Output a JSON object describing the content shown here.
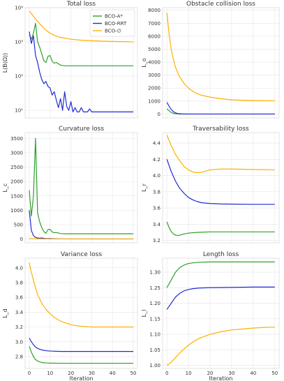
{
  "chart_data": [
    {
      "type": "line",
      "title": "Total loss",
      "xlabel": "",
      "ylabel": "L(B(Ω))",
      "yscale": "log",
      "ylim": [
        6,
        10000
      ],
      "xlim": [
        -2,
        52
      ],
      "yticks": [
        10,
        100,
        1000,
        10000
      ],
      "ytick_labels": [
        "10¹",
        "10²",
        "10³",
        "10⁴"
      ],
      "xticks": [
        0,
        10,
        20,
        30,
        40,
        50
      ],
      "xtick_labels": [],
      "grid": true,
      "legend": {
        "placement": "top-right",
        "entries": [
          "BCO-A*",
          "BCO-RRT",
          "BCO-∅"
        ]
      },
      "series": [
        {
          "name": "BCO-A*",
          "color": "#2ca02c",
          "x": [
            0,
            1,
            2,
            3,
            4,
            5,
            6,
            7,
            8,
            9,
            10,
            11,
            12,
            13,
            14,
            15,
            16,
            17,
            18,
            20,
            25,
            30,
            40,
            50
          ],
          "y": [
            1600,
            1200,
            1800,
            3500,
            1000,
            700,
            450,
            280,
            250,
            380,
            400,
            270,
            240,
            250,
            230,
            210,
            205,
            200,
            200,
            200,
            200,
            200,
            200,
            200
          ]
        },
        {
          "name": "BCO-RRT",
          "color": "#1f2bd4",
          "x": [
            0,
            1,
            2,
            3,
            4,
            5,
            6,
            7,
            8,
            9,
            10,
            11,
            12,
            13,
            14,
            15,
            16,
            17,
            18,
            19,
            20,
            21,
            22,
            23,
            24,
            25,
            26,
            27,
            28,
            29,
            30,
            33,
            35,
            40,
            45,
            50
          ],
          "y": [
            2000,
            900,
            1500,
            400,
            250,
            130,
            80,
            60,
            70,
            50,
            45,
            28,
            35,
            20,
            12,
            22,
            10,
            35,
            13,
            10,
            18,
            9,
            12,
            9,
            9,
            12,
            9,
            9,
            9,
            11,
            9,
            9,
            9,
            9,
            9,
            9
          ]
        },
        {
          "name": "BCO-∅",
          "color": "#ffb000",
          "x": [
            0,
            2,
            4,
            6,
            8,
            10,
            12,
            15,
            20,
            25,
            30,
            35,
            40,
            45,
            50
          ],
          "y": [
            8000,
            5600,
            4000,
            2900,
            2200,
            1800,
            1550,
            1350,
            1200,
            1120,
            1080,
            1050,
            1030,
            1020,
            1000
          ]
        }
      ]
    },
    {
      "type": "line",
      "title": "Obstacle collision loss",
      "xlabel": "",
      "ylabel": "L_o",
      "yscale": "linear",
      "ylim": [
        -300,
        8200
      ],
      "xlim": [
        -2,
        52
      ],
      "yticks": [
        0,
        1000,
        2000,
        3000,
        4000,
        5000,
        6000,
        7000,
        8000
      ],
      "ytick_labels": [
        "0",
        "1000",
        "2000",
        "3000",
        "4000",
        "5000",
        "6000",
        "7000",
        "8000"
      ],
      "xticks": [
        0,
        10,
        20,
        30,
        40,
        50
      ],
      "xtick_labels": [],
      "grid": true,
      "series": [
        {
          "name": "BCO-A*",
          "color": "#2ca02c",
          "x": [
            0,
            1,
            2,
            3,
            4,
            6,
            10,
            20,
            50
          ],
          "y": [
            400,
            250,
            120,
            50,
            20,
            0,
            0,
            0,
            0
          ]
        },
        {
          "name": "BCO-RRT",
          "color": "#1f2bd4",
          "x": [
            0,
            1,
            2,
            3,
            4,
            5,
            7,
            10,
            20,
            50
          ],
          "y": [
            900,
            600,
            350,
            180,
            90,
            40,
            10,
            0,
            0,
            0
          ]
        },
        {
          "name": "BCO-∅",
          "color": "#ffb000",
          "x": [
            0,
            1,
            2,
            3,
            4,
            5,
            6,
            8,
            10,
            12,
            15,
            20,
            25,
            30,
            35,
            40,
            45,
            50
          ],
          "y": [
            7800,
            6200,
            5000,
            4200,
            3600,
            3200,
            2850,
            2350,
            2000,
            1750,
            1500,
            1300,
            1180,
            1100,
            1060,
            1040,
            1030,
            1020
          ]
        }
      ]
    },
    {
      "type": "line",
      "title": "Curvature loss",
      "xlabel": "",
      "ylabel": "L_c",
      "yscale": "linear",
      "ylim": [
        -130,
        3700
      ],
      "xlim": [
        -2,
        52
      ],
      "yticks": [
        0,
        500,
        1000,
        1500,
        2000,
        2500,
        3000,
        3500
      ],
      "ytick_labels": [
        "0",
        "500",
        "1000",
        "1500",
        "2000",
        "2500",
        "3000",
        "3500"
      ],
      "xticks": [
        0,
        10,
        20,
        30,
        40,
        50
      ],
      "xtick_labels": [],
      "grid": true,
      "series": [
        {
          "name": "BCO-A*",
          "color": "#2ca02c",
          "x": [
            0,
            1,
            2,
            3,
            4,
            5,
            6,
            7,
            8,
            9,
            10,
            11,
            12,
            13,
            14,
            15,
            17,
            20,
            30,
            50
          ],
          "y": [
            1700,
            800,
            1500,
            3500,
            900,
            600,
            400,
            260,
            200,
            330,
            340,
            250,
            220,
            230,
            210,
            190,
            185,
            185,
            185,
            185
          ]
        },
        {
          "name": "BCO-RRT",
          "color": "#1f2bd4",
          "x": [
            0,
            1,
            2,
            3,
            4,
            5,
            6,
            7,
            8,
            10,
            12,
            15,
            20,
            30,
            50
          ],
          "y": [
            1000,
            300,
            120,
            60,
            40,
            30,
            40,
            25,
            20,
            15,
            10,
            5,
            5,
            5,
            5
          ]
        },
        {
          "name": "BCO-∅",
          "color": "#ffb000",
          "x": [
            0,
            2,
            4,
            6,
            10,
            50
          ],
          "y": [
            20,
            15,
            10,
            8,
            5,
            3
          ]
        }
      ]
    },
    {
      "type": "line",
      "title": "Traversability loss",
      "xlabel": "",
      "ylabel": "L_r",
      "yscale": "linear",
      "ylim": [
        3.17,
        4.53
      ],
      "xlim": [
        -2,
        52
      ],
      "yticks": [
        3.2,
        3.4,
        3.6,
        3.8,
        4.0,
        4.2,
        4.4
      ],
      "ytick_labels": [
        "3.2",
        "3.4",
        "3.6",
        "3.8",
        "4.0",
        "4.2",
        "4.4"
      ],
      "xticks": [
        0,
        10,
        20,
        30,
        40,
        50
      ],
      "xtick_labels": [],
      "grid": true,
      "series": [
        {
          "name": "BCO-A*",
          "color": "#2ca02c",
          "x": [
            0,
            1,
            2,
            3,
            4,
            5,
            6,
            8,
            10,
            12,
            15,
            20,
            30,
            40,
            50
          ],
          "y": [
            3.43,
            3.36,
            3.31,
            3.28,
            3.265,
            3.26,
            3.265,
            3.28,
            3.29,
            3.295,
            3.3,
            3.305,
            3.305,
            3.305,
            3.305
          ]
        },
        {
          "name": "BCO-RRT",
          "color": "#1f2bd4",
          "x": [
            0,
            2,
            4,
            6,
            8,
            10,
            12,
            14,
            16,
            20,
            25,
            30,
            40,
            50
          ],
          "y": [
            4.2,
            4.05,
            3.93,
            3.84,
            3.78,
            3.73,
            3.7,
            3.68,
            3.665,
            3.655,
            3.65,
            3.648,
            3.645,
            3.645
          ]
        },
        {
          "name": "BCO-∅",
          "color": "#ffb000",
          "x": [
            0,
            2,
            4,
            6,
            8,
            10,
            12,
            14,
            16,
            18,
            20,
            25,
            30,
            40,
            50
          ],
          "y": [
            4.5,
            4.37,
            4.26,
            4.18,
            4.11,
            4.07,
            4.045,
            4.035,
            4.04,
            4.055,
            4.07,
            4.08,
            4.08,
            4.075,
            4.07
          ]
        }
      ]
    },
    {
      "type": "line",
      "title": "Variance loss",
      "xlabel": "Iteration",
      "ylabel": "L_d",
      "yscale": "linear",
      "ylim": [
        2.64,
        4.13
      ],
      "xlim": [
        -2,
        52
      ],
      "yticks": [
        2.8,
        3.0,
        3.2,
        3.4,
        3.6,
        3.8,
        4.0
      ],
      "ytick_labels": [
        "2.8",
        "3.0",
        "3.2",
        "3.4",
        "3.6",
        "3.8",
        "4.0"
      ],
      "xticks": [
        0,
        10,
        20,
        30,
        40,
        50
      ],
      "xtick_labels": [
        "0",
        "10",
        "20",
        "30",
        "40",
        "50"
      ],
      "grid": true,
      "series": [
        {
          "name": "BCO-A*",
          "color": "#2ca02c",
          "x": [
            0,
            1,
            2,
            3,
            4,
            5,
            6,
            8,
            10,
            15,
            20,
            30,
            50
          ],
          "y": [
            2.94,
            2.86,
            2.8,
            2.76,
            2.74,
            2.73,
            2.72,
            2.715,
            2.712,
            2.71,
            2.71,
            2.71,
            2.71
          ]
        },
        {
          "name": "BCO-RRT",
          "color": "#1f2bd4",
          "x": [
            0,
            1,
            2,
            3,
            4,
            6,
            8,
            10,
            15,
            20,
            30,
            50
          ],
          "y": [
            3.05,
            3.0,
            2.96,
            2.93,
            2.91,
            2.89,
            2.88,
            2.875,
            2.87,
            2.87,
            2.87,
            2.87
          ]
        },
        {
          "name": "BCO-∅",
          "color": "#ffb000",
          "x": [
            0,
            1,
            2,
            3,
            4,
            5,
            6,
            8,
            10,
            12,
            15,
            20,
            25,
            30,
            40,
            50
          ],
          "y": [
            4.07,
            3.94,
            3.83,
            3.73,
            3.64,
            3.58,
            3.52,
            3.44,
            3.38,
            3.33,
            3.28,
            3.23,
            3.21,
            3.2,
            3.2,
            3.2
          ]
        }
      ]
    },
    {
      "type": "line",
      "title": "Length loss",
      "xlabel": "Iteration",
      "ylabel": "L_l",
      "yscale": "linear",
      "ylim": [
        0.99,
        1.345
      ],
      "xlim": [
        -2,
        52
      ],
      "yticks": [
        1.0,
        1.05,
        1.1,
        1.15,
        1.2,
        1.25,
        1.3
      ],
      "ytick_labels": [
        "1.00",
        "1.05",
        "1.10",
        "1.15",
        "1.20",
        "1.25",
        "1.30"
      ],
      "xticks": [
        0,
        10,
        20,
        30,
        40,
        50
      ],
      "xtick_labels": [
        "0",
        "10",
        "20",
        "30",
        "40",
        "50"
      ],
      "grid": true,
      "series": [
        {
          "name": "BCO-A*",
          "color": "#2ca02c",
          "x": [
            0,
            2,
            4,
            6,
            8,
            10,
            12,
            15,
            20,
            30,
            40,
            50
          ],
          "y": [
            1.25,
            1.275,
            1.3,
            1.315,
            1.323,
            1.328,
            1.33,
            1.332,
            1.333,
            1.333,
            1.333,
            1.333
          ]
        },
        {
          "name": "BCO-RRT",
          "color": "#1f2bd4",
          "x": [
            0,
            2,
            4,
            6,
            8,
            10,
            12,
            15,
            20,
            30,
            40,
            50
          ],
          "y": [
            1.18,
            1.2,
            1.22,
            1.232,
            1.24,
            1.244,
            1.247,
            1.249,
            1.25,
            1.251,
            1.252,
            1.252
          ]
        },
        {
          "name": "BCO-∅",
          "color": "#ffb000",
          "x": [
            0,
            2,
            4,
            6,
            8,
            10,
            12,
            15,
            20,
            25,
            30,
            35,
            40,
            45,
            50
          ],
          "y": [
            1.0,
            1.01,
            1.025,
            1.04,
            1.053,
            1.065,
            1.075,
            1.087,
            1.1,
            1.108,
            1.114,
            1.117,
            1.12,
            1.122,
            1.123
          ]
        }
      ]
    }
  ]
}
